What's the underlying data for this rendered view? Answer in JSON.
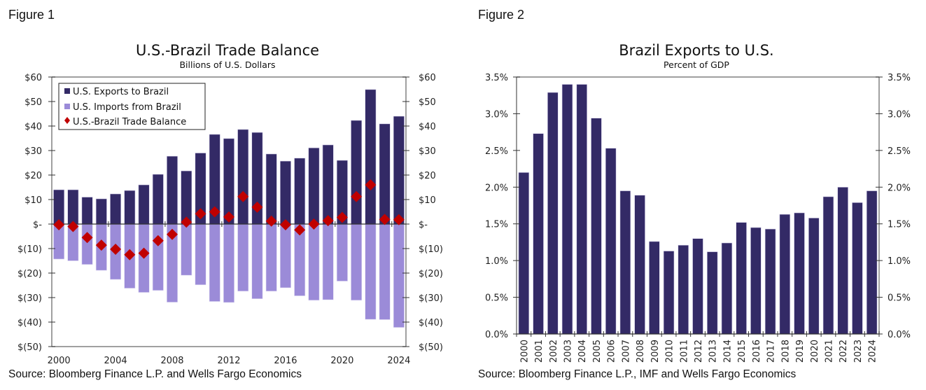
{
  "figures": [
    {
      "label": "Figure 1",
      "source": "Source: Bloomberg Finance L.P. and Wells Fargo Economics"
    },
    {
      "label": "Figure 2",
      "source": "Source: Bloomberg Finance L.P., IMF and Wells Fargo Economics"
    }
  ],
  "colors": {
    "exports": "#332a66",
    "imports": "#9b8bd8",
    "balance": "#c00000",
    "axis": "#808080",
    "bar2": "#332a66"
  },
  "chart_data": [
    {
      "type": "bar",
      "title": "U.S.-Brazil Trade Balance",
      "subtitle": "Billions of U.S. Dollars",
      "xlabel": "",
      "ylabel": "",
      "ylim": [
        -50,
        60
      ],
      "yticks": [
        60,
        50,
        40,
        30,
        20,
        10,
        0,
        -10,
        -20,
        -30,
        -40,
        -50
      ],
      "ytick_labels": [
        "$60",
        "$50",
        "$40",
        "$30",
        "$20",
        "$10",
        "$-",
        "$(10)",
        "$(20)",
        "$(30)",
        "$(40)",
        "$(50)"
      ],
      "xtick_labels": [
        "2000",
        "2004",
        "2008",
        "2012",
        "2016",
        "2020",
        "2024"
      ],
      "grid": false,
      "legend_position": "top-left",
      "categories": [
        "2000",
        "2001",
        "2002",
        "2003",
        "2004",
        "2005",
        "2006",
        "2007",
        "2008",
        "2009",
        "2010",
        "2011",
        "2012",
        "2013",
        "2014",
        "2015",
        "2016",
        "2017",
        "2018",
        "2019",
        "2020",
        "2021",
        "2022",
        "2023",
        "2024"
      ],
      "series": [
        {
          "name": "U.S. Exports to Brazil",
          "kind": "bar",
          "values": [
            14.0,
            14.0,
            11.0,
            10.3,
            12.3,
            13.7,
            16.0,
            20.3,
            27.7,
            21.7,
            29.0,
            36.6,
            34.9,
            38.6,
            37.4,
            28.6,
            25.7,
            26.9,
            31.1,
            32.3,
            26.0,
            42.3,
            54.9,
            40.9,
            44.0
          ]
        },
        {
          "name": "U.S. Imports from Brazil",
          "kind": "bar",
          "values": [
            -14.3,
            -15.0,
            -16.5,
            -18.9,
            -22.6,
            -26.2,
            -27.9,
            -27.1,
            -31.9,
            -20.9,
            -24.8,
            -31.6,
            -32.0,
            -27.4,
            -30.5,
            -27.4,
            -26.0,
            -29.3,
            -31.1,
            -30.9,
            -23.3,
            -31.1,
            -38.9,
            -39.0,
            -42.2
          ]
        },
        {
          "name": "U.S.-Brazil Trade Balance",
          "kind": "marker",
          "values": [
            -0.3,
            -1.0,
            -5.5,
            -8.6,
            -10.3,
            -12.5,
            -11.9,
            -6.8,
            -4.2,
            0.8,
            4.2,
            5.0,
            2.9,
            11.2,
            6.9,
            1.2,
            -0.3,
            -2.4,
            0.0,
            1.4,
            2.7,
            11.2,
            16.0,
            1.9,
            1.8
          ]
        }
      ]
    },
    {
      "type": "bar",
      "title": "Brazil Exports to U.S.",
      "subtitle": "Percent of GDP",
      "xlabel": "",
      "ylabel": "",
      "ylim": [
        0,
        3.5
      ],
      "yticks": [
        3.5,
        3.0,
        2.5,
        2.0,
        1.5,
        1.0,
        0.5,
        0.0
      ],
      "ytick_labels": [
        "3.5%",
        "3.0%",
        "2.5%",
        "2.0%",
        "1.5%",
        "1.0%",
        "0.5%",
        "0.0%"
      ],
      "grid": false,
      "legend_position": "none",
      "categories": [
        "2000",
        "2001",
        "2002",
        "2003",
        "2004",
        "2005",
        "2006",
        "2007",
        "2008",
        "2009",
        "2010",
        "2011",
        "2012",
        "2013",
        "2014",
        "2015",
        "2016",
        "2017",
        "2018",
        "2019",
        "2020",
        "2021",
        "2022",
        "2023",
        "2024"
      ],
      "series": [
        {
          "name": "Brazil Exports to U.S. (% of GDP)",
          "values": [
            2.2,
            2.73,
            3.29,
            3.4,
            3.4,
            2.94,
            2.53,
            1.95,
            1.89,
            1.26,
            1.13,
            1.21,
            1.3,
            1.12,
            1.24,
            1.52,
            1.45,
            1.43,
            1.63,
            1.65,
            1.58,
            1.87,
            2.0,
            1.79,
            1.95
          ]
        }
      ]
    }
  ]
}
